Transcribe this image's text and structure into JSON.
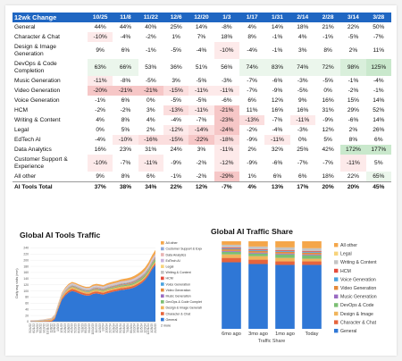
{
  "table": {
    "header_label": "12wk Change",
    "columns": [
      "10/25",
      "11/8",
      "11/22",
      "12/6",
      "12/20",
      "1/3",
      "1/17",
      "1/31",
      "2/14",
      "2/28",
      "3/14",
      "3/28"
    ],
    "rows": [
      {
        "label": "General",
        "values": [
          "44%",
          "44%",
          "40%",
          "25%",
          "14%",
          "-8%",
          "4%",
          "14%",
          "18%",
          "21%",
          "22%",
          "50%"
        ]
      },
      {
        "label": "Character & Chat",
        "values": [
          "-10%",
          "-4%",
          "-2%",
          "1%",
          "7%",
          "18%",
          "8%",
          "-1%",
          "4%",
          "-1%",
          "-5%",
          "-7%"
        ]
      },
      {
        "label": "Design & Image Generation",
        "values": [
          "9%",
          "6%",
          "-1%",
          "-5%",
          "-4%",
          "-10%",
          "-4%",
          "-1%",
          "3%",
          "8%",
          "2%",
          "11%"
        ]
      },
      {
        "label": "DevOps & Code Completion",
        "values": [
          "63%",
          "66%",
          "53%",
          "36%",
          "51%",
          "56%",
          "74%",
          "83%",
          "74%",
          "72%",
          "98%",
          "125%"
        ]
      },
      {
        "label": "Music Generation",
        "values": [
          "-11%",
          "-8%",
          "-5%",
          "3%",
          "-5%",
          "-3%",
          "-7%",
          "-6%",
          "-3%",
          "-5%",
          "-1%",
          "-4%"
        ]
      },
      {
        "label": "Video Generation",
        "values": [
          "-20%",
          "-21%",
          "-21%",
          "-15%",
          "-11%",
          "-11%",
          "-7%",
          "-9%",
          "-5%",
          "0%",
          "-2%",
          "-1%"
        ]
      },
      {
        "label": "Voice Generation",
        "values": [
          "-1%",
          "6%",
          "0%",
          "-5%",
          "-5%",
          "-6%",
          "6%",
          "12%",
          "9%",
          "16%",
          "15%",
          "14%"
        ]
      },
      {
        "label": "HCM",
        "values": [
          "-2%",
          "-2%",
          "3%",
          "-13%",
          "-11%",
          "-21%",
          "11%",
          "16%",
          "16%",
          "31%",
          "29%",
          "52%"
        ]
      },
      {
        "label": "Writing & Content",
        "values": [
          "4%",
          "8%",
          "4%",
          "-4%",
          "-7%",
          "-23%",
          "-13%",
          "-7%",
          "-11%",
          "-9%",
          "-6%",
          "14%"
        ]
      },
      {
        "label": "Legal",
        "values": [
          "0%",
          "5%",
          "2%",
          "-12%",
          "-14%",
          "-24%",
          "-2%",
          "-4%",
          "-3%",
          "12%",
          "2%",
          "26%"
        ]
      },
      {
        "label": "EdTech AI",
        "values": [
          "-4%",
          "-10%",
          "-16%",
          "-15%",
          "-22%",
          "-18%",
          "-9%",
          "-11%",
          "0%",
          "5%",
          "8%",
          "6%"
        ]
      },
      {
        "label": "Data Analytics",
        "values": [
          "16%",
          "23%",
          "31%",
          "24%",
          "3%",
          "-11%",
          "2%",
          "32%",
          "25%",
          "42%",
          "172%",
          "177%"
        ]
      },
      {
        "label": "Customer Support & Experience",
        "values": [
          "-10%",
          "-7%",
          "-11%",
          "-9%",
          "-2%",
          "-12%",
          "-9%",
          "-6%",
          "-7%",
          "-7%",
          "-11%",
          "5%"
        ]
      },
      {
        "label": "All other",
        "values": [
          "9%",
          "8%",
          "6%",
          "-1%",
          "-2%",
          "-29%",
          "1%",
          "6%",
          "6%",
          "18%",
          "22%",
          "65%"
        ]
      }
    ],
    "total": {
      "label": "AI Tools Total",
      "values": [
        "37%",
        "38%",
        "34%",
        "22%",
        "12%",
        "-7%",
        "4%",
        "13%",
        "17%",
        "20%",
        "20%",
        "45%"
      ]
    }
  },
  "chart_data": [
    {
      "type": "area",
      "title": "Global AI Tools Traffic",
      "ylabel": "Daily avg visits (mm)",
      "ylim": [
        0,
        250
      ],
      "yticks": [
        "0",
        "20",
        "40",
        "60",
        "80",
        "100",
        "120",
        "140",
        "160",
        "180",
        "200",
        "220",
        "240"
      ],
      "x": [
        "5/24/22",
        "6/21/22",
        "7/19/22",
        "8/16/22",
        "9/13/22",
        "10/11/22",
        "11/8/22",
        "12/6/22",
        "1/3/23",
        "1/31/23",
        "2/28/23",
        "3/28/23",
        "4/25/23",
        "5/23/23",
        "6/20/23",
        "7/18/23",
        "8/15/23",
        "9/12/23",
        "10/10/23",
        "11/7/23",
        "12/5/23",
        "1/2/24",
        "1/30/24",
        "2/27/24",
        "3/26/24",
        "4/23/24",
        "5/21/24",
        "6/18/24",
        "7/16/24",
        "8/13/24",
        "9/10/24",
        "10/8/24",
        "11/5/24",
        "12/3/24",
        "12/31/24",
        "1/28/25",
        "2/25/25"
      ],
      "legend_position": "right",
      "more_label": "2 more",
      "series": [
        {
          "name": "All other",
          "color": "#f4a64a",
          "values": [
            0.3,
            0.3,
            0.4,
            0.4,
            0.5,
            0.6,
            0.8,
            1.5,
            2.5,
            3,
            3.5,
            4,
            4,
            4,
            4,
            4,
            4,
            4,
            4.5,
            5,
            5,
            5,
            5.5,
            6,
            6,
            6,
            6.5,
            7,
            7,
            7.5,
            8,
            8.5,
            9,
            9.5,
            10,
            11,
            12
          ]
        },
        {
          "name": "Customer Support & Experience",
          "color": "#8fa8d8",
          "values": [
            0.1,
            0.1,
            0.1,
            0.1,
            0.1,
            0.1,
            0.1,
            0.2,
            0.3,
            0.4,
            0.5,
            0.6,
            0.6,
            0.6,
            0.7,
            0.7,
            0.7,
            0.7,
            0.8,
            0.8,
            0.8,
            0.8,
            0.9,
            0.9,
            0.9,
            1,
            1,
            1,
            1.1,
            1.1,
            1.2,
            1.2,
            1.3,
            1.3,
            1.4,
            1.5,
            1.6
          ]
        },
        {
          "name": "Data Analytics",
          "color": "#e8b4b4",
          "values": [
            0.1,
            0.1,
            0.1,
            0.1,
            0.1,
            0.1,
            0.1,
            0.2,
            0.3,
            0.4,
            0.4,
            0.5,
            0.5,
            0.5,
            0.5,
            0.5,
            0.5,
            0.5,
            0.6,
            0.6,
            0.6,
            0.6,
            0.7,
            0.7,
            0.7,
            0.8,
            0.8,
            0.9,
            0.9,
            1,
            1,
            1.1,
            1.1,
            1.2,
            1.3,
            1.8,
            2.4
          ]
        },
        {
          "name": "EdTech AI",
          "color": "#c9b3de",
          "values": [
            0.3,
            0.3,
            0.3,
            0.4,
            0.4,
            0.5,
            0.6,
            0.8,
            1,
            1.2,
            1.3,
            1.4,
            1.4,
            1.3,
            1.3,
            1.2,
            1.2,
            1.3,
            1.4,
            1.4,
            1.4,
            1.4,
            1.5,
            1.5,
            1.5,
            1.6,
            1.6,
            1.6,
            1.6,
            1.6,
            1.7,
            1.7,
            1.8,
            1.8,
            1.9,
            2,
            2.1
          ]
        },
        {
          "name": "Legal",
          "color": "#f7d37b",
          "values": [
            0.1,
            0.1,
            0.1,
            0.1,
            0.1,
            0.1,
            0.1,
            0.2,
            0.2,
            0.3,
            0.3,
            0.3,
            0.3,
            0.3,
            0.3,
            0.3,
            0.3,
            0.3,
            0.3,
            0.3,
            0.3,
            0.3,
            0.3,
            0.3,
            0.3,
            0.3,
            0.4,
            0.4,
            0.4,
            0.4,
            0.4,
            0.4,
            0.4,
            0.4,
            0.5,
            0.5,
            0.5
          ]
        },
        {
          "name": "Writing & Content",
          "color": "#c4c4c4",
          "values": [
            0.8,
            0.8,
            0.9,
            1,
            1.1,
            1.3,
            1.5,
            2,
            3,
            3.5,
            4,
            4.5,
            4.5,
            4.4,
            4.3,
            4.1,
            4,
            4,
            4.2,
            4.2,
            4.2,
            4.1,
            4.1,
            4.1,
            4,
            4,
            4,
            4,
            4,
            4,
            4,
            4,
            4.1,
            4.1,
            4.2,
            4.3,
            4.5
          ]
        },
        {
          "name": "HCM",
          "color": "#e54b3c",
          "values": [
            0.2,
            0.2,
            0.2,
            0.2,
            0.3,
            0.3,
            0.3,
            0.4,
            0.5,
            0.6,
            0.7,
            0.7,
            0.8,
            0.8,
            0.8,
            0.8,
            0.8,
            0.8,
            0.9,
            0.9,
            0.9,
            0.9,
            1,
            1,
            1,
            1,
            1.1,
            1.1,
            1.1,
            1.2,
            1.2,
            1.3,
            1.3,
            1.4,
            1.4,
            1.5,
            1.6
          ]
        },
        {
          "name": "Voice Generation",
          "color": "#4aa3df",
          "values": [
            0.2,
            0.2,
            0.2,
            0.3,
            0.3,
            0.4,
            0.5,
            0.6,
            0.8,
            1,
            1.1,
            1.2,
            1.3,
            1.3,
            1.3,
            1.3,
            1.3,
            1.3,
            1.4,
            1.4,
            1.4,
            1.4,
            1.5,
            1.5,
            1.5,
            1.6,
            1.6,
            1.7,
            1.7,
            1.7,
            1.8,
            1.8,
            1.9,
            1.9,
            2,
            2.1,
            2.2
          ]
        },
        {
          "name": "Video Generation",
          "color": "#e58a3a",
          "values": [
            0.3,
            0.3,
            0.4,
            0.4,
            0.5,
            0.6,
            0.7,
            0.9,
            1.2,
            1.5,
            1.7,
            1.9,
            2,
            2,
            2,
            2,
            2,
            2,
            2.1,
            2.1,
            2.1,
            2.1,
            2.2,
            2.2,
            2.2,
            2.3,
            2.3,
            2.3,
            2.3,
            2.3,
            2.4,
            2.4,
            2.4,
            2.4,
            2.5,
            2.5,
            2.6
          ]
        },
        {
          "name": "Music Generation",
          "color": "#9a6bc2",
          "values": [
            0.1,
            0.1,
            0.1,
            0.1,
            0.2,
            0.2,
            0.2,
            0.3,
            0.4,
            0.5,
            0.5,
            0.5,
            0.5,
            0.5,
            0.5,
            0.5,
            0.5,
            0.5,
            0.6,
            0.6,
            0.6,
            0.6,
            0.6,
            0.6,
            0.6,
            0.6,
            0.7,
            0.7,
            0.7,
            0.7,
            0.7,
            0.7,
            0.7,
            0.7,
            0.7,
            0.7,
            0.7
          ]
        },
        {
          "name": "DevOps & Code Completion",
          "color": "#7bbf73",
          "values": [
            0.3,
            0.3,
            0.4,
            0.4,
            0.5,
            0.5,
            0.6,
            0.7,
            0.9,
            1.1,
            1.3,
            1.5,
            1.6,
            1.7,
            1.8,
            1.9,
            2,
            2.1,
            2.3,
            2.4,
            2.5,
            2.6,
            2.8,
            2.9,
            3,
            3.2,
            3.4,
            3.6,
            3.8,
            4,
            4.3,
            4.6,
            5,
            5.4,
            5.9,
            6.5,
            7.2
          ]
        },
        {
          "name": "Design & Image Generation",
          "color": "#f0b55c",
          "values": [
            1,
            1,
            1.2,
            1.5,
            2,
            2.5,
            3,
            3.5,
            4,
            4.5,
            5,
            5.2,
            5.3,
            5.3,
            5.2,
            5.1,
            5,
            5,
            5.1,
            5.1,
            5.1,
            5,
            5,
            5,
            5,
            5,
            5,
            5,
            5,
            5,
            5,
            5,
            5,
            5,
            5.1,
            5.2,
            5.3
          ]
        },
        {
          "name": "Character & Chat",
          "color": "#e6643c",
          "values": [
            1,
            1,
            1.2,
            1.5,
            2,
            2.5,
            3,
            3.5,
            4,
            5,
            5.5,
            6,
            6.5,
            6.5,
            6.4,
            6.3,
            6.2,
            6.2,
            6.3,
            6.3,
            6.3,
            6.2,
            6.2,
            6.2,
            6.1,
            6.1,
            6.1,
            6.1,
            6,
            6,
            6,
            6,
            6,
            6,
            6,
            6,
            6
          ]
        },
        {
          "name": "General",
          "color": "#2f77d6",
          "values": [
            0,
            0,
            0,
            0,
            0,
            0,
            0,
            8,
            40,
            70,
            85,
            95,
            100,
            97,
            92,
            88,
            85,
            85,
            90,
            92,
            90,
            88,
            92,
            95,
            98,
            100,
            103,
            104,
            106,
            108,
            112,
            118,
            125,
            135,
            150,
            170,
            185
          ]
        }
      ]
    },
    {
      "type": "bar",
      "title": "Global AI Traffic Share",
      "xlabel": "Traffic Share",
      "categories": [
        "6mo ago",
        "3mo ago",
        "1mo ago",
        "Today"
      ],
      "ylim": [
        0,
        1
      ],
      "legend_position": "right",
      "series": [
        {
          "name": "General",
          "color": "#2f77d6",
          "values": [
            0.76,
            0.74,
            0.73,
            0.73
          ]
        },
        {
          "name": "Character & Chat",
          "color": "#e6643c",
          "values": [
            0.05,
            0.05,
            0.04,
            0.04
          ]
        },
        {
          "name": "Design & Image",
          "color": "#f0b55c",
          "values": [
            0.04,
            0.04,
            0.04,
            0.03
          ]
        },
        {
          "name": "DevOps & Code",
          "color": "#7bbf73",
          "values": [
            0.03,
            0.03,
            0.04,
            0.04
          ]
        },
        {
          "name": "Music Generation",
          "color": "#9a6bc2",
          "values": [
            0.01,
            0.01,
            0.01,
            0.01
          ]
        },
        {
          "name": "Video Generation",
          "color": "#e58a3a",
          "values": [
            0.02,
            0.02,
            0.02,
            0.02
          ]
        },
        {
          "name": "Voice Generation",
          "color": "#4aa3df",
          "values": [
            0.01,
            0.01,
            0.01,
            0.01
          ]
        },
        {
          "name": "HCM",
          "color": "#e54b3c",
          "values": [
            0.01,
            0.01,
            0.01,
            0.01
          ]
        },
        {
          "name": "Writing & Content",
          "color": "#c4c4c4",
          "values": [
            0.03,
            0.03,
            0.03,
            0.03
          ]
        },
        {
          "name": "Legal",
          "color": "#f7d37b",
          "values": [
            0.0,
            0.0,
            0.0,
            0.0
          ]
        },
        {
          "name": "All other",
          "color": "#f4a64a",
          "values": [
            0.04,
            0.06,
            0.07,
            0.08
          ]
        }
      ]
    }
  ]
}
